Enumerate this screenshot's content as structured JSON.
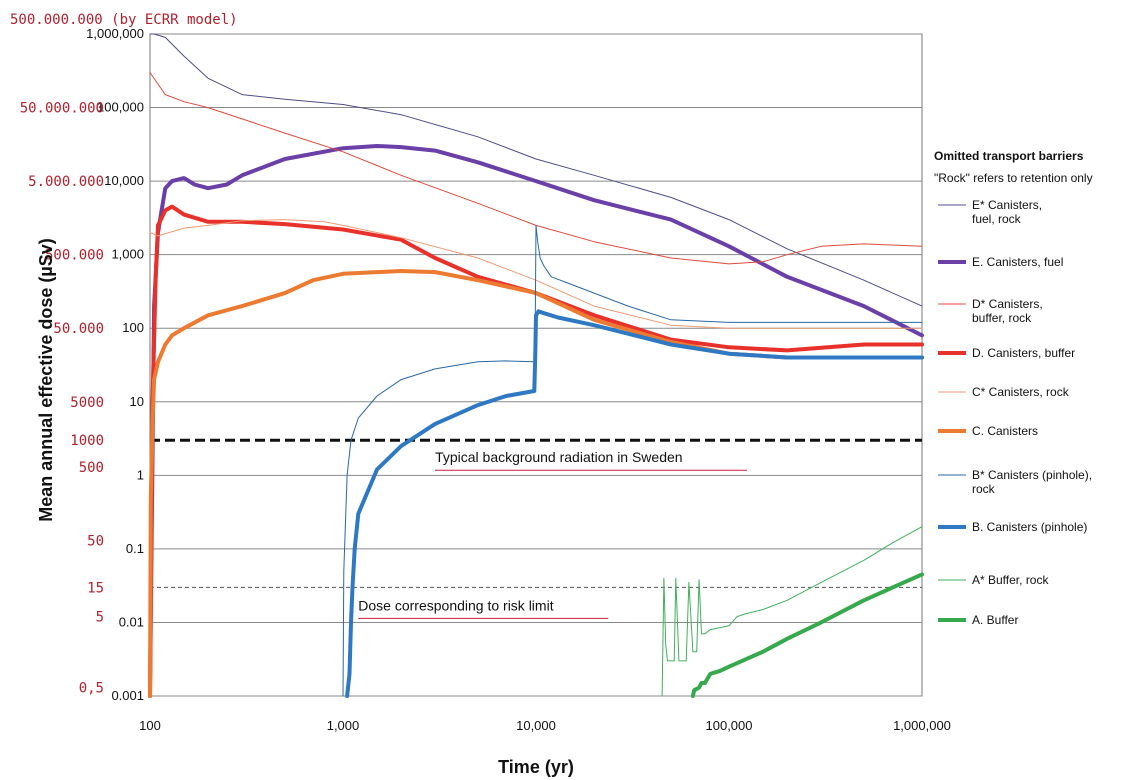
{
  "chart_data": {
    "type": "line",
    "title": "",
    "xlabel": "Time (yr)",
    "ylabel": "Mean annual effective dose (µSv)",
    "x_scale": "log",
    "y_scale": "log",
    "xlim": [
      100,
      1000000
    ],
    "ylim": [
      0.001,
      1000000
    ],
    "grid": "horizontal",
    "x_ticks": [
      "100",
      "1,000",
      "10,000",
      "100,000",
      "1,000,000"
    ],
    "x_tick_values": [
      100,
      1000,
      10000,
      100000,
      1000000
    ],
    "y_ticks": [
      "0.001",
      "0.01",
      "0.1",
      "1",
      "10",
      "100",
      "1,000",
      "10,000",
      "100,000",
      "1,000,000"
    ],
    "y_tick_values": [
      0.001,
      0.01,
      0.1,
      1,
      10,
      100,
      1000,
      10000,
      100000,
      1000000
    ],
    "ecrr_header": "500.000.000  (by ECRR model)",
    "ecrr_labels": [
      {
        "text": "50.000.000",
        "y": 100000
      },
      {
        "text": "5.000.000",
        "y": 10000
      },
      {
        "text": "500.000",
        "y": 1000
      },
      {
        "text": "50.000",
        "y": 100
      },
      {
        "text": "5000",
        "y": 10
      },
      {
        "text": "1000",
        "y": 3
      },
      {
        "text": "500",
        "y": 1.3
      },
      {
        "text": "50",
        "y": 0.13
      },
      {
        "text": "5",
        "y": 0.012
      },
      {
        "text": "15",
        "y": 0.03
      },
      {
        "text": "0,5",
        "y": 0.0013
      }
    ],
    "reference_lines": [
      {
        "label": "Typical background radiation in Sweden",
        "y": 3,
        "style": "dashed-heavy"
      },
      {
        "label": "Dose corresponding to risk limit",
        "y": 0.03,
        "style": "dashed-light"
      }
    ],
    "legend": {
      "title": "Omitted transport barriers",
      "subtitle": "\"Rock\" refers to retention only",
      "placement": "right"
    },
    "series": [
      {
        "name": "E* Canisters, fuel, rock",
        "color": "#4b4f86",
        "width": 1,
        "x": [
          100,
          105,
          120,
          150,
          200,
          300,
          500,
          1000,
          2000,
          5000,
          10000,
          20000,
          50000,
          100000,
          200000,
          500000,
          1000000
        ],
        "y": [
          1000000,
          1000000,
          900000,
          500000,
          250000,
          150000,
          130000,
          110000,
          80000,
          40000,
          20000,
          12000,
          6000,
          3000,
          1200,
          450,
          200
        ]
      },
      {
        "name": "E. Canisters, fuel",
        "color": "#6a3fa8",
        "width": 4,
        "x": [
          100,
          105,
          110,
          120,
          130,
          150,
          170,
          200,
          250,
          300,
          500,
          1000,
          1500,
          2000,
          3000,
          5000,
          10000,
          20000,
          50000,
          100000,
          200000,
          500000,
          1000000
        ],
        "y": [
          0.001,
          200,
          2000,
          8000,
          10000,
          11000,
          9000,
          8000,
          9000,
          12000,
          20000,
          28000,
          30000,
          29000,
          26000,
          18000,
          10000,
          5500,
          3000,
          1300,
          500,
          200,
          80
        ]
      },
      {
        "name": "D* Canisters, buffer, rock",
        "color": "#e04a3a",
        "width": 1,
        "x": [
          100,
          120,
          150,
          200,
          300,
          500,
          1000,
          2000,
          5000,
          10000,
          20000,
          50000,
          100000,
          150000,
          200000,
          300000,
          500000,
          1000000
        ],
        "y": [
          300000,
          150000,
          120000,
          100000,
          70000,
          45000,
          25000,
          12000,
          5000,
          2500,
          1500,
          900,
          750,
          800,
          1000,
          1300,
          1400,
          1300
        ]
      },
      {
        "name": "D. Canisters, buffer",
        "color": "#e8312a",
        "width": 4,
        "x": [
          100,
          103,
          107,
          110,
          120,
          130,
          150,
          200,
          300,
          500,
          1000,
          2000,
          3000,
          5000,
          10000,
          20000,
          50000,
          100000,
          200000,
          500000,
          1000000
        ],
        "y": [
          0.001,
          10,
          500,
          2500,
          4000,
          4500,
          3500,
          2800,
          2800,
          2600,
          2200,
          1600,
          900,
          500,
          300,
          150,
          70,
          55,
          50,
          60,
          60
        ]
      },
      {
        "name": "C* Canisters, rock",
        "color": "#ef9a72",
        "width": 1,
        "x": [
          100,
          110,
          150,
          200,
          300,
          500,
          800,
          1000,
          2000,
          5000,
          10000,
          20000,
          50000,
          100000,
          200000,
          500000,
          1000000
        ],
        "y": [
          2000,
          1800,
          2300,
          2500,
          2900,
          3000,
          2800,
          2500,
          1700,
          900,
          450,
          200,
          110,
          100,
          100,
          100,
          100
        ]
      },
      {
        "name": "C. Canisters",
        "color": "#ec7a30",
        "width": 4,
        "x": [
          100,
          101,
          103,
          105,
          110,
          120,
          130,
          150,
          200,
          300,
          500,
          700,
          1000,
          2000,
          3000,
          5000,
          10000,
          20000,
          50000,
          100000,
          200000,
          500000,
          1000000
        ],
        "y": [
          0.001,
          0.5,
          5,
          20,
          35,
          60,
          80,
          100,
          150,
          200,
          300,
          450,
          550,
          600,
          580,
          450,
          300,
          130,
          65,
          45,
          40,
          40,
          40
        ]
      },
      {
        "name": "B* Canisters (pinhole), rock",
        "color": "#2a67a8",
        "width": 1,
        "x": [
          1000,
          1010,
          1050,
          1100,
          1200,
          1500,
          2000,
          3000,
          5000,
          7000,
          9800,
          9900,
          10000,
          10200,
          10500,
          11000,
          12000,
          15000,
          20000,
          30000,
          50000,
          100000,
          200000,
          500000,
          1000000
        ],
        "y": [
          0.001,
          0.05,
          1,
          3,
          6,
          12,
          20,
          28,
          35,
          36,
          35,
          100,
          2500,
          1500,
          900,
          700,
          500,
          400,
          300,
          200,
          130,
          120,
          120,
          120,
          120
        ]
      },
      {
        "name": "B. Canisters (pinhole)",
        "color": "#2f78c4",
        "width": 4,
        "x": [
          1050,
          1080,
          1100,
          1120,
          1150,
          1200,
          1500,
          2000,
          3000,
          5000,
          7000,
          9800,
          9900,
          10000,
          10300,
          11000,
          13000,
          20000,
          50000,
          100000,
          200000,
          500000,
          1000000
        ],
        "y": [
          0.001,
          0.002,
          0.01,
          0.03,
          0.1,
          0.3,
          1.2,
          2.5,
          5,
          9,
          12,
          14,
          40,
          150,
          170,
          160,
          140,
          110,
          60,
          45,
          40,
          40,
          40
        ]
      },
      {
        "name": "A* Buffer, rock",
        "color": "#42b05c",
        "width": 1,
        "x": [
          45000,
          46000,
          47000,
          48000,
          52000,
          53000,
          55000,
          60000,
          62000,
          65000,
          68000,
          70000,
          72000,
          75000,
          80000,
          100000,
          110000,
          120000,
          150000,
          200000,
          300000,
          500000,
          700000,
          1000000
        ],
        "y": [
          0.001,
          0.04,
          0.005,
          0.003,
          0.003,
          0.04,
          0.003,
          0.003,
          0.035,
          0.004,
          0.004,
          0.038,
          0.007,
          0.007,
          0.008,
          0.009,
          0.012,
          0.013,
          0.015,
          0.02,
          0.035,
          0.07,
          0.12,
          0.2
        ]
      },
      {
        "name": "A. Buffer",
        "color": "#36a94c",
        "width": 4,
        "x": [
          65000,
          66000,
          70000,
          72000,
          75000,
          80000,
          90000,
          100000,
          150000,
          200000,
          300000,
          500000,
          1000000
        ],
        "y": [
          0.001,
          0.0012,
          0.0013,
          0.0015,
          0.0015,
          0.002,
          0.0022,
          0.0025,
          0.004,
          0.006,
          0.01,
          0.02,
          0.045
        ]
      }
    ]
  }
}
